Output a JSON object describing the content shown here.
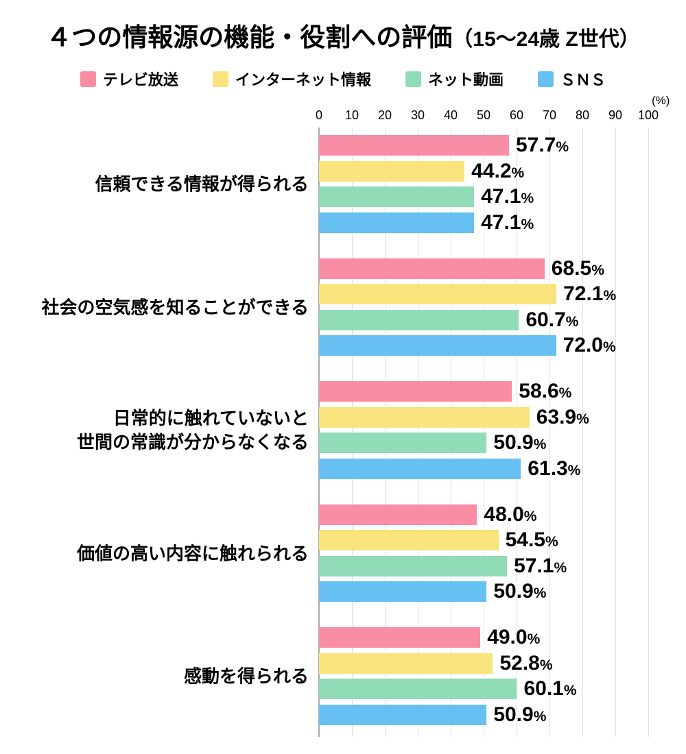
{
  "title": {
    "main": "４つの情報源の機能・役割への評価",
    "suffix": "（15〜24歳 Z世代）"
  },
  "chart_data": {
    "type": "bar",
    "orientation": "horizontal",
    "title": "４つの情報源の機能・役割への評価（15〜24歳 Z世代）",
    "unit_label": "(%)",
    "value_suffix": "%",
    "xlim": [
      0,
      100
    ],
    "x_ticks": [
      0,
      10,
      20,
      30,
      40,
      50,
      60,
      70,
      80,
      90,
      100
    ],
    "grid": true,
    "legend_position": "top",
    "categories": [
      "信頼できる情報が得られる",
      "社会の空気感を知ることができる",
      "日常的に触れていないと\n世間の常識が分からなくなる",
      "価値の高い内容に触れられる",
      "感動を得られる"
    ],
    "series": [
      {
        "name": "テレビ放送",
        "color": "#F98DA4",
        "values": [
          57.7,
          68.5,
          58.6,
          48.0,
          49.0
        ]
      },
      {
        "name": "インターネット情報",
        "color": "#F8E37C",
        "values": [
          44.2,
          72.1,
          63.9,
          54.5,
          52.8
        ]
      },
      {
        "name": "ネット動画",
        "color": "#90DCB7",
        "values": [
          47.1,
          60.7,
          50.9,
          57.1,
          60.1
        ]
      },
      {
        "name": "ＳＮＳ",
        "color": "#66C0F1",
        "values": [
          47.1,
          72.0,
          61.3,
          50.9,
          50.9
        ]
      }
    ],
    "grid_color": "#dedede",
    "axis_line_color": "#ababab",
    "text_color": "#000000"
  }
}
